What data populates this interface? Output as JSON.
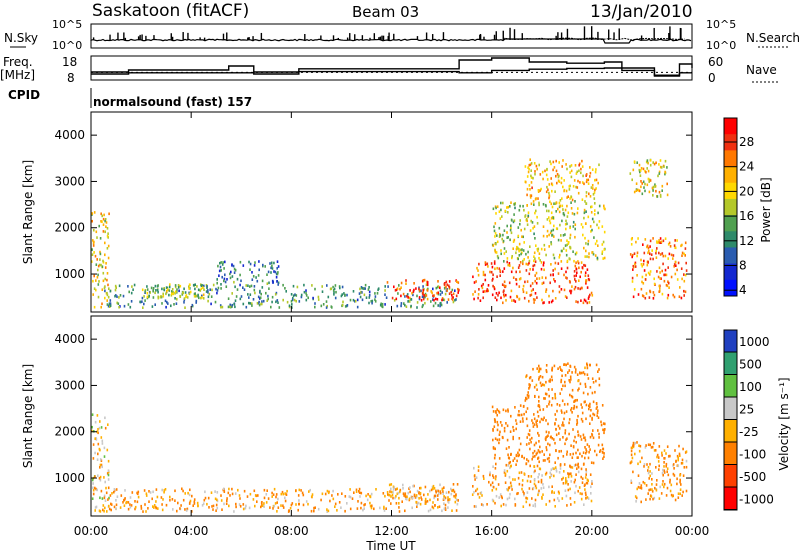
{
  "header": {
    "station": "Saskatoon (fitACF)",
    "beam": "Beam 03",
    "date": "13/Jan/2010"
  },
  "top_panels": {
    "nsky_label": "N.Sky",
    "nsky_left_ticks": [
      "10^5",
      "10^0"
    ],
    "nsearch_label": "N.Search",
    "nsearch_right_ticks": [
      "10^5",
      "10^0"
    ],
    "freq_label_1": "Freq.",
    "freq_label_2": "[MHz]",
    "freq_ticks": [
      "18",
      "8"
    ],
    "nave_label": "Nave",
    "nave_ticks": [
      "60",
      "0"
    ],
    "cpid_label": "CPID",
    "cpid_value": "normalsound (fast) 157"
  },
  "range_axis": {
    "label": "Slant Range [km]",
    "ticks": [
      "4000",
      "3000",
      "2000",
      "1000"
    ]
  },
  "power_colorbar": {
    "label": "Power [dB]",
    "ticks": [
      "28",
      "24",
      "20",
      "16",
      "12",
      "8",
      "4"
    ],
    "colors": [
      "#ff0000",
      "#f03010",
      "#ff7800",
      "#ffb000",
      "#ffd800",
      "#b4c82a",
      "#50a050",
      "#2e8a6a",
      "#2a5cb0",
      "#1428d0",
      "#0010ff"
    ]
  },
  "velocity_colorbar": {
    "label": "Velocity [m s⁻¹]",
    "ticks": [
      "1000",
      "500",
      "100",
      "25",
      "-25",
      "-100",
      "-500",
      "-1000"
    ],
    "colors": [
      "#2040c0",
      "#30a070",
      "#60c040",
      "#c8c8c8",
      "#ffb000",
      "#ff8000",
      "#ff4000",
      "#ff0000"
    ]
  },
  "time_axis": {
    "label": "Time UT",
    "ticks": [
      "00:00",
      "04:00",
      "08:00",
      "12:00",
      "16:00",
      "20:00",
      "00:00"
    ]
  },
  "chart_data": [
    {
      "type": "line",
      "name": "N.Sky / N.Search",
      "x": [
        0,
        2,
        4,
        6,
        8,
        10,
        12,
        14,
        16,
        18,
        20,
        22,
        24
      ],
      "y_scale": "log",
      "ylim_labels": [
        "10^0",
        "10^5"
      ]
    },
    {
      "type": "line",
      "title": "Freq. [MHz] / Nave",
      "x": [
        0,
        0.7,
        1.5,
        5.5,
        6.5,
        8.3,
        14.7,
        16,
        17.5,
        19,
        20.5,
        21.2,
        22.5,
        23.5,
        24
      ],
      "series": [
        {
          "name": "Freq.",
          "values": [
            10.5,
            10.5,
            11,
            11,
            10.5,
            11.5,
            11,
            12,
            12.5,
            12.8,
            13,
            12,
            10,
            11,
            11
          ]
        },
        {
          "name": "Nave",
          "values": [
            20,
            20,
            25,
            35,
            20,
            28,
            50,
            55,
            45,
            42,
            45,
            30,
            10,
            40,
            30
          ]
        }
      ],
      "xlim": [
        0,
        24
      ]
    },
    {
      "type": "heatmap",
      "title": "Power [dB]",
      "x_unit": "hours UT",
      "y_unit": "km",
      "xlim": [
        0,
        24
      ],
      "ylim": [
        180,
        4500
      ],
      "scatter_regions": [
        {
          "t0": 0.0,
          "t1": 0.7,
          "r0": 300,
          "r1": 2400,
          "power": 18
        },
        {
          "t0": 0.5,
          "t1": 14.7,
          "r0": 300,
          "r1": 800,
          "power": 10
        },
        {
          "t0": 2.0,
          "t1": 4.5,
          "r0": 500,
          "r1": 800,
          "power": 14
        },
        {
          "t0": 5.0,
          "t1": 7.5,
          "r0": 800,
          "r1": 1300,
          "power": 8
        },
        {
          "t0": 11.8,
          "t1": 14.7,
          "r0": 450,
          "r1": 900,
          "power": 26
        },
        {
          "t0": 15.2,
          "t1": 20.0,
          "r0": 400,
          "r1": 1300,
          "power": 26
        },
        {
          "t0": 16.0,
          "t1": 20.5,
          "r0": 1300,
          "r1": 2600,
          "power": 16
        },
        {
          "t0": 17.3,
          "t1": 20.3,
          "r0": 2600,
          "r1": 3500,
          "power": 20
        },
        {
          "t0": 21.5,
          "t1": 23.8,
          "r0": 500,
          "r1": 1800,
          "power": 24
        },
        {
          "t0": 21.5,
          "t1": 23.0,
          "r0": 2700,
          "r1": 3500,
          "power": 18
        }
      ]
    },
    {
      "type": "heatmap",
      "title": "Velocity [m s-1]",
      "x_unit": "hours UT",
      "y_unit": "km",
      "xlim": [
        0,
        24
      ],
      "ylim": [
        180,
        4500
      ],
      "scatter_regions": [
        {
          "t0": 0.0,
          "t1": 0.7,
          "r0": 300,
          "r1": 2400,
          "velocity": 0
        },
        {
          "t0": 0.5,
          "t1": 14.7,
          "r0": 300,
          "r1": 800,
          "velocity": -60
        },
        {
          "t0": 11.8,
          "t1": 14.7,
          "r0": 450,
          "r1": 900,
          "velocity": -40
        },
        {
          "t0": 15.2,
          "t1": 20.0,
          "r0": 400,
          "r1": 1300,
          "velocity": -40
        },
        {
          "t0": 16.0,
          "t1": 20.5,
          "r0": 1300,
          "r1": 2600,
          "velocity": -200
        },
        {
          "t0": 17.3,
          "t1": 20.3,
          "r0": 2600,
          "r1": 3500,
          "velocity": -150
        },
        {
          "t0": 21.5,
          "t1": 23.8,
          "r0": 500,
          "r1": 1800,
          "velocity": -80
        }
      ]
    }
  ]
}
